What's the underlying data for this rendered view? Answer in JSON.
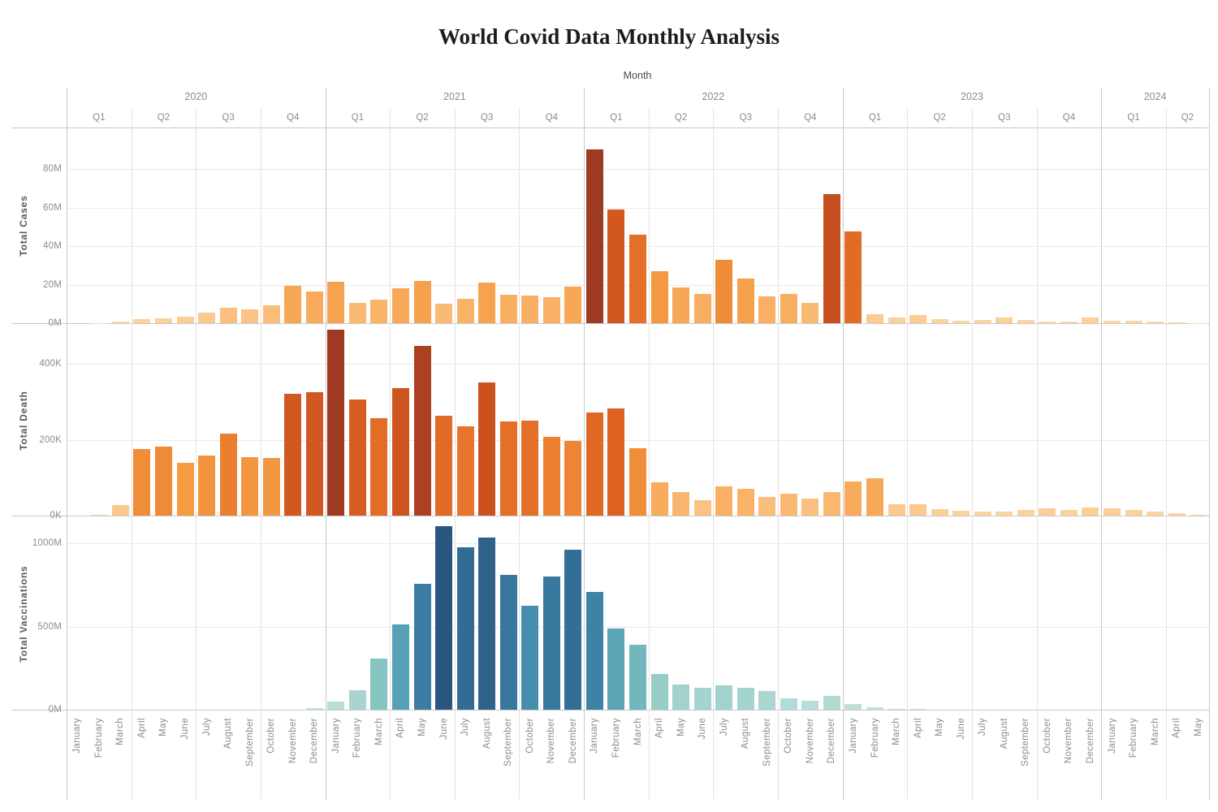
{
  "chart_data": {
    "type": "bar",
    "title": "World Covid Data Monthly Analysis",
    "x_axis_title": "Month",
    "month_names": [
      "January",
      "February",
      "March",
      "April",
      "May",
      "June",
      "July",
      "August",
      "September",
      "October",
      "November",
      "December"
    ],
    "years": [
      {
        "label": "2020",
        "months": 12
      },
      {
        "label": "2021",
        "months": 12
      },
      {
        "label": "2022",
        "months": 12
      },
      {
        "label": "2023",
        "months": 12
      },
      {
        "label": "2024",
        "months": 5
      }
    ],
    "quarter_labels": [
      "Q1",
      "Q2",
      "Q3",
      "Q4"
    ],
    "panels": [
      {
        "id": "total-cases",
        "axis_title": "Total Cases",
        "unit": "M",
        "palette": "orange",
        "ticks": [
          {
            "value": 0,
            "label": "0M"
          },
          {
            "value": 20,
            "label": "20M"
          },
          {
            "value": 40,
            "label": "40M"
          },
          {
            "value": 60,
            "label": "60M"
          },
          {
            "value": 80,
            "label": "80M"
          }
        ],
        "values": [
          0.01,
          0.07,
          0.8,
          2.3,
          2.5,
          3.5,
          5.3,
          8.1,
          7.0,
          9.2,
          19.3,
          16.5,
          21.5,
          10.7,
          12.2,
          18.3,
          22.1,
          10.1,
          12.5,
          21.2,
          14.8,
          14.4,
          13.6,
          19.0,
          90,
          59,
          46,
          26.8,
          18.4,
          15,
          33,
          23.1,
          13.7,
          15,
          10.5,
          67,
          47.7,
          4.6,
          2.9,
          4.2,
          2.1,
          1.3,
          1.5,
          3.1,
          1.5,
          0.7,
          0.7,
          3.1,
          1.2,
          1.1,
          0.7,
          0.25,
          0.1
        ]
      },
      {
        "id": "total-death",
        "axis_title": "Total Death",
        "unit": "K",
        "palette": "orange",
        "ticks": [
          {
            "value": 0,
            "label": "0K"
          },
          {
            "value": 200,
            "label": "200K"
          },
          {
            "value": 400,
            "label": "400K"
          }
        ],
        "values": [
          0.1,
          3,
          28,
          176,
          181,
          140,
          158,
          215,
          154,
          151,
          321,
          326,
          490,
          306,
          257,
          335,
          448,
          263,
          236,
          350,
          248,
          250,
          208,
          197,
          271,
          283,
          177,
          88,
          63,
          40,
          76,
          71,
          49,
          58,
          44,
          61,
          90,
          99,
          30,
          29,
          18,
          13,
          10,
          11,
          14,
          19,
          15,
          22,
          19,
          14,
          11,
          7,
          2
        ]
      },
      {
        "id": "total-vaccinations",
        "axis_title": "Total Vaccinations",
        "unit": "M",
        "palette": "blue",
        "ticks": [
          {
            "value": 0,
            "label": "0M"
          },
          {
            "value": 500,
            "label": "500M"
          },
          {
            "value": 1000,
            "label": "1000M"
          }
        ],
        "values": [
          0,
          0,
          0,
          0,
          0,
          0,
          0,
          0,
          0,
          0,
          0,
          8,
          50,
          117,
          305,
          510,
          758,
          1104,
          976,
          1034,
          810,
          626,
          800,
          961,
          709,
          489,
          392,
          216,
          151,
          130,
          145,
          133,
          112,
          67,
          55,
          81,
          36,
          13,
          6,
          5,
          0,
          0,
          0,
          0,
          0,
          0,
          0,
          0,
          0,
          0,
          0,
          0,
          0
        ]
      }
    ],
    "palettes": {
      "orange": [
        "#fdd9a9",
        "#f9b267",
        "#f49b43",
        "#ec8030",
        "#de6322",
        "#cb511f",
        "#b44520",
        "#9e3a21"
      ],
      "blue": [
        "#c5e3df",
        "#a3d3cd",
        "#8cc8c3",
        "#6db4bb",
        "#4d99b4",
        "#3f85a8",
        "#37759c",
        "#336e96",
        "#2b5680"
      ]
    },
    "colors": {
      "grid": "#e9e9e9",
      "quarter_line": "#e3e3e3",
      "year_line": "#c9c9c9",
      "band_border": "#c9c9c9",
      "muted_text": "#8b8b8b",
      "axis_title_text": "#5a5a5a",
      "title_text": "#1c1c1c"
    }
  }
}
